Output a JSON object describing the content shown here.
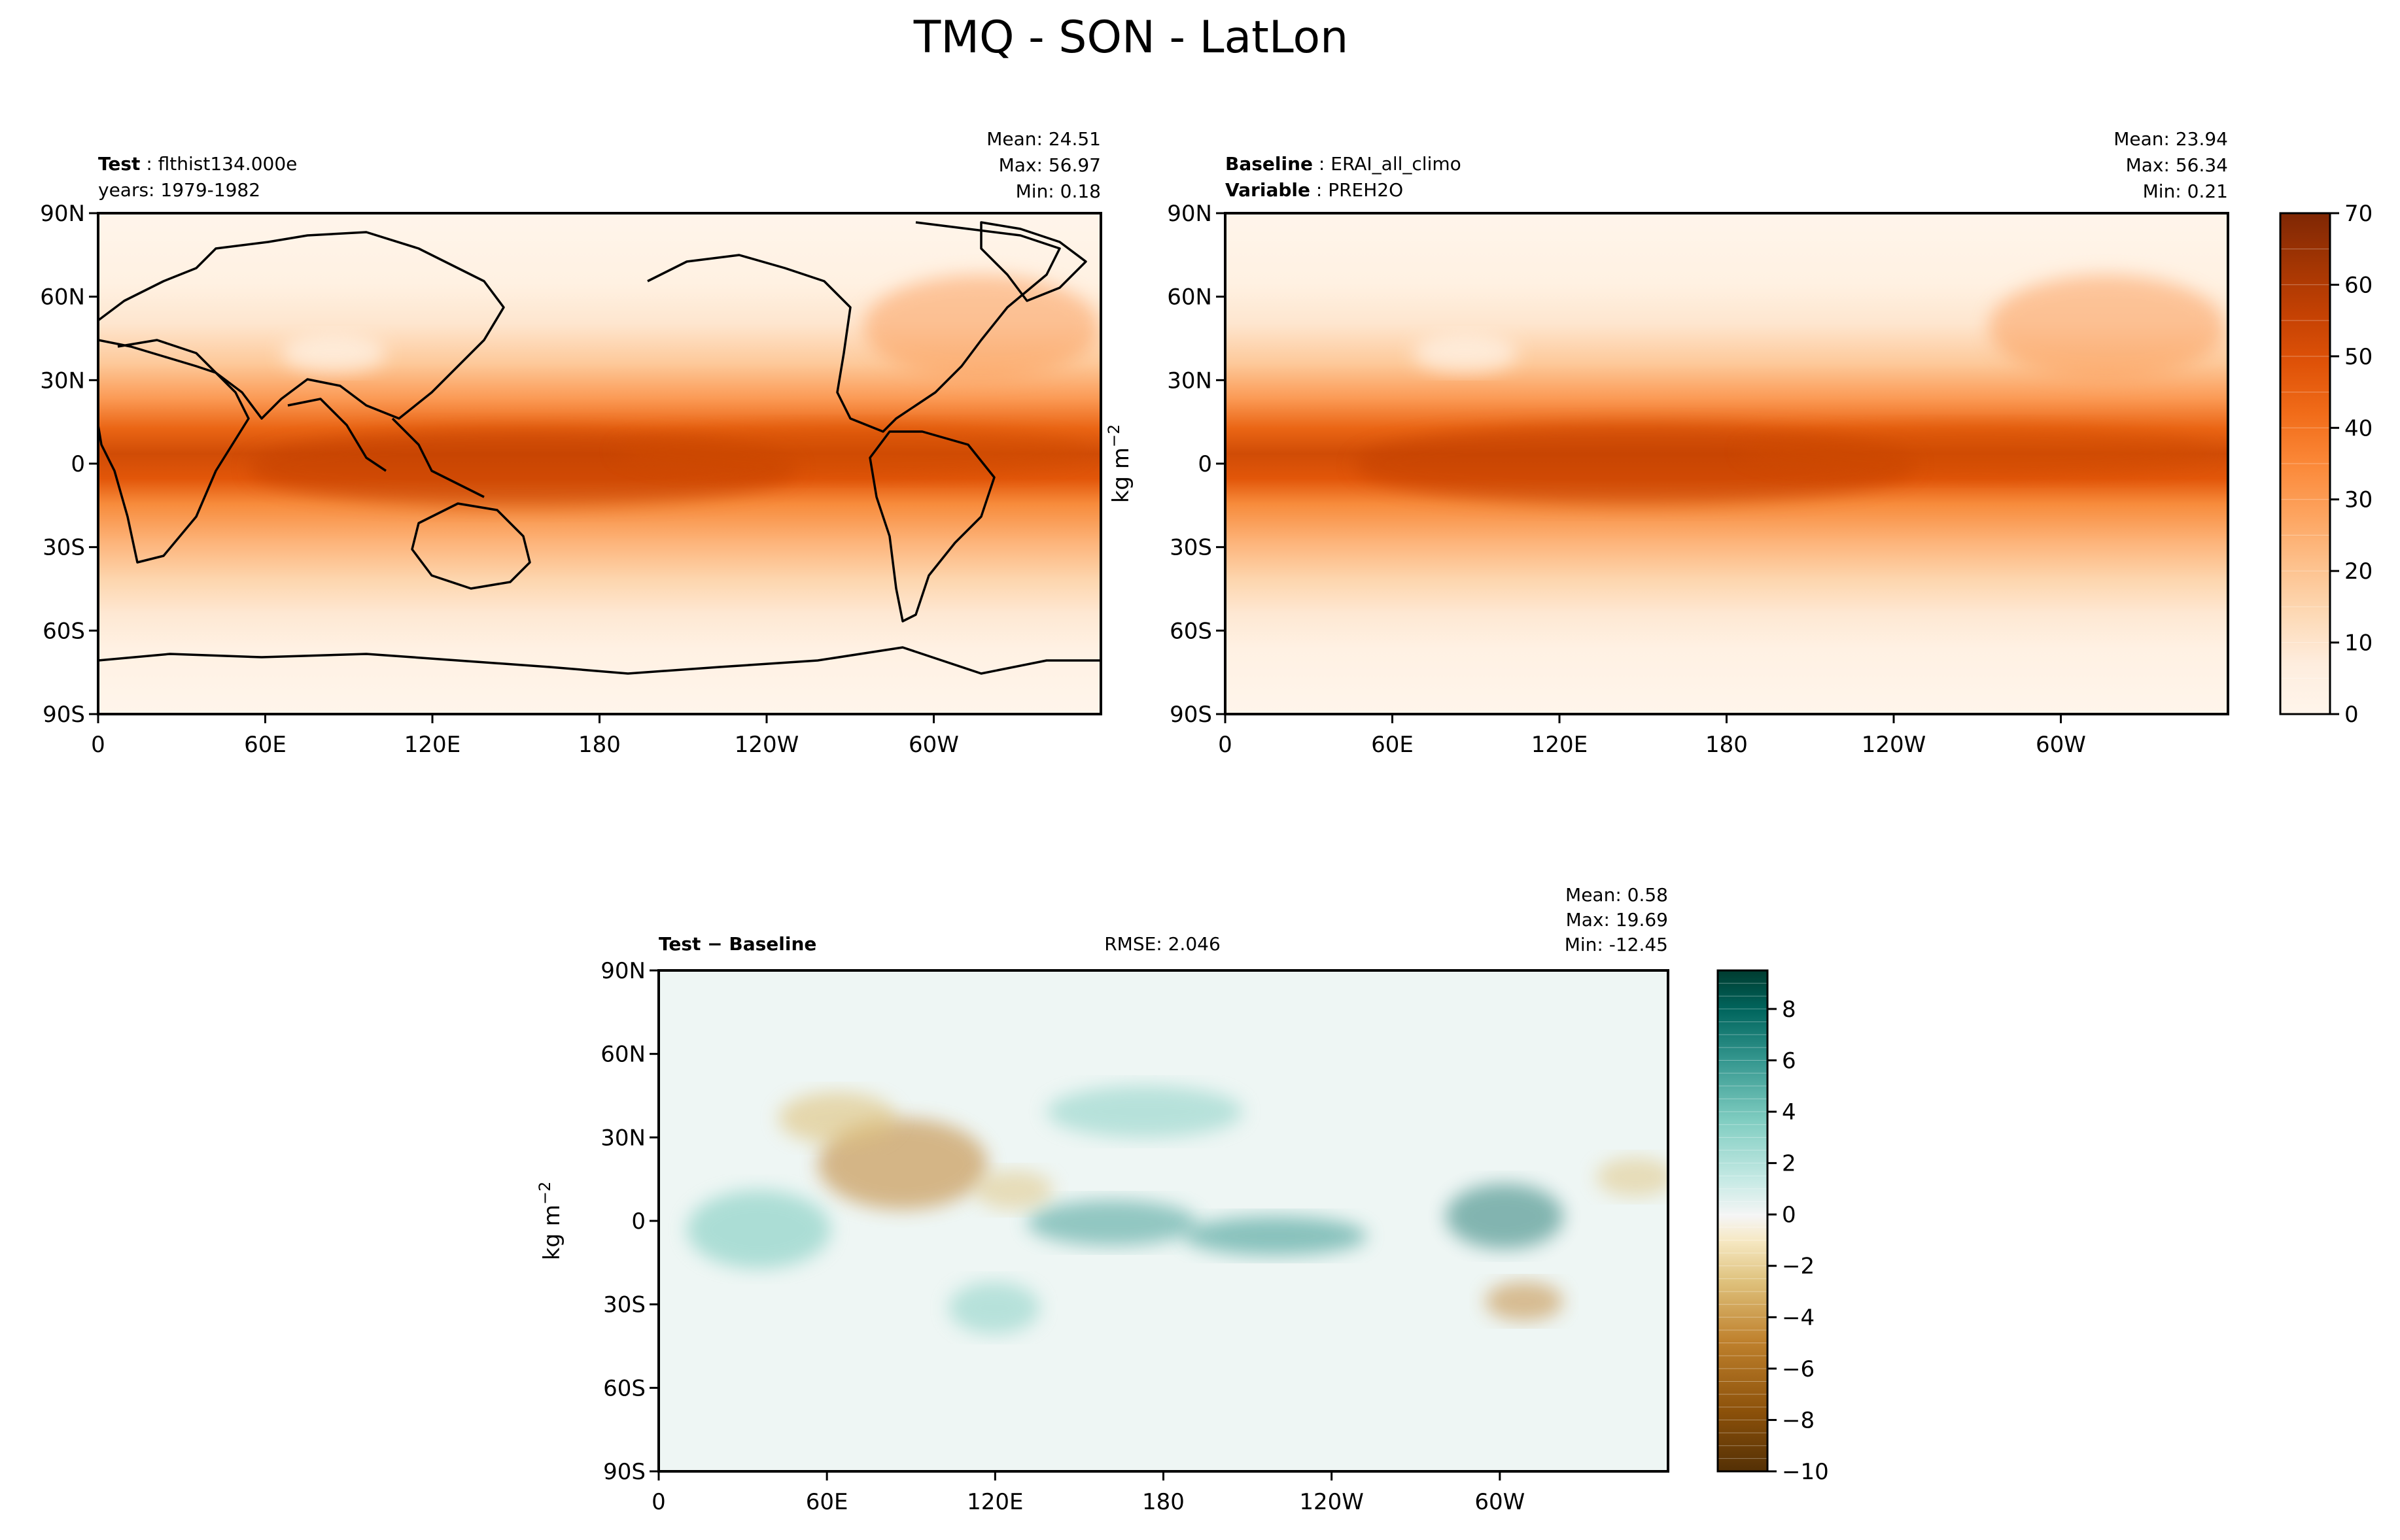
{
  "figure": {
    "title": "TMQ - SON - LatLon"
  },
  "chart_data": [
    {
      "type": "heatmap",
      "name": "test",
      "label_bold": "Test",
      "label_text": "flthist134.000e",
      "sublabel": "years: 1979-1982",
      "stats": [
        "Mean: 24.51",
        "Max: 56.97",
        "Min:  0.18"
      ],
      "x_ticks": [
        "0",
        "60E",
        "120E",
        "180",
        "120W",
        "60W"
      ],
      "x_tick_values": [
        0,
        60,
        120,
        180,
        240,
        300
      ],
      "xlim": [
        0,
        360
      ],
      "y_ticks": [
        "90N",
        "60N",
        "30N",
        "0",
        "30S",
        "60S",
        "90S"
      ],
      "y_tick_values": [
        90,
        60,
        30,
        0,
        -30,
        -60,
        -90
      ],
      "ylim": [
        -90,
        90
      ],
      "colormap": "Oranges",
      "color_range": [
        0,
        70
      ]
    },
    {
      "type": "heatmap",
      "name": "baseline",
      "label_bold": "Baseline",
      "label_text": "ERAI_all_climo",
      "label2_bold": "Variable",
      "label2_text": "PREH2O",
      "stats": [
        "Mean: 23.94",
        "Max: 56.34",
        "Min:  0.21"
      ],
      "x_ticks": [
        "0",
        "60E",
        "120E",
        "180",
        "120W",
        "60W"
      ],
      "x_tick_values": [
        0,
        60,
        120,
        180,
        240,
        300
      ],
      "xlim": [
        0,
        360
      ],
      "y_ticks": [
        "90N",
        "60N",
        "30N",
        "0",
        "30S",
        "60S",
        "90S"
      ],
      "y_tick_values": [
        90,
        60,
        30,
        0,
        -30,
        -60,
        -90
      ],
      "ylim": [
        -90,
        90
      ],
      "colormap": "Oranges",
      "color_range": [
        0,
        70
      ],
      "colorbar": {
        "label": "kg m",
        "label_exp": "−2",
        "ticks": [
          "0",
          "10",
          "20",
          "30",
          "40",
          "50",
          "60",
          "70"
        ],
        "tick_values": [
          0,
          10,
          20,
          30,
          40,
          50,
          60,
          70
        ]
      }
    },
    {
      "type": "heatmap",
      "name": "difference",
      "label_bold": "Test − Baseline",
      "center_label": "RMSE: 2.046",
      "stats": [
        "Mean:  0.58",
        "Max: 19.69",
        "Min: -12.45"
      ],
      "x_ticks": [
        "0",
        "60E",
        "120E",
        "180",
        "120W",
        "60W"
      ],
      "x_tick_values": [
        0,
        60,
        120,
        180,
        240,
        300
      ],
      "xlim": [
        0,
        360
      ],
      "y_ticks": [
        "90N",
        "60N",
        "30N",
        "0",
        "30S",
        "60S",
        "90S"
      ],
      "y_tick_values": [
        90,
        60,
        30,
        0,
        -30,
        -60,
        -90
      ],
      "ylim": [
        -90,
        90
      ],
      "ylabel": "kg m",
      "ylabel_exp": "−2",
      "colormap": "BrBG",
      "color_range": [
        -10,
        9.5
      ],
      "colorbar": {
        "ticks": [
          "8",
          "6",
          "4",
          "2",
          "0",
          "−2",
          "−4",
          "−6",
          "−8",
          "−10"
        ],
        "tick_values": [
          8,
          6,
          4,
          2,
          0,
          -2,
          -4,
          -6,
          -8,
          -10
        ]
      }
    }
  ],
  "colors": {
    "orange_scale": [
      "#fff5eb",
      "#fee8d3",
      "#fdd8b3",
      "#fdc28c",
      "#fda762",
      "#fb8d3d",
      "#f2701d",
      "#e25609",
      "#c44103",
      "#9f3303",
      "#7f2704"
    ],
    "diverge_scale": [
      "#543005",
      "#8c510a",
      "#bf812d",
      "#dfc27d",
      "#f6e8c3",
      "#f5f5f5",
      "#c7eae5",
      "#80cdc1",
      "#35978f",
      "#01665e",
      "#003c30"
    ],
    "frame": "#000000",
    "background": "#ffffff"
  }
}
